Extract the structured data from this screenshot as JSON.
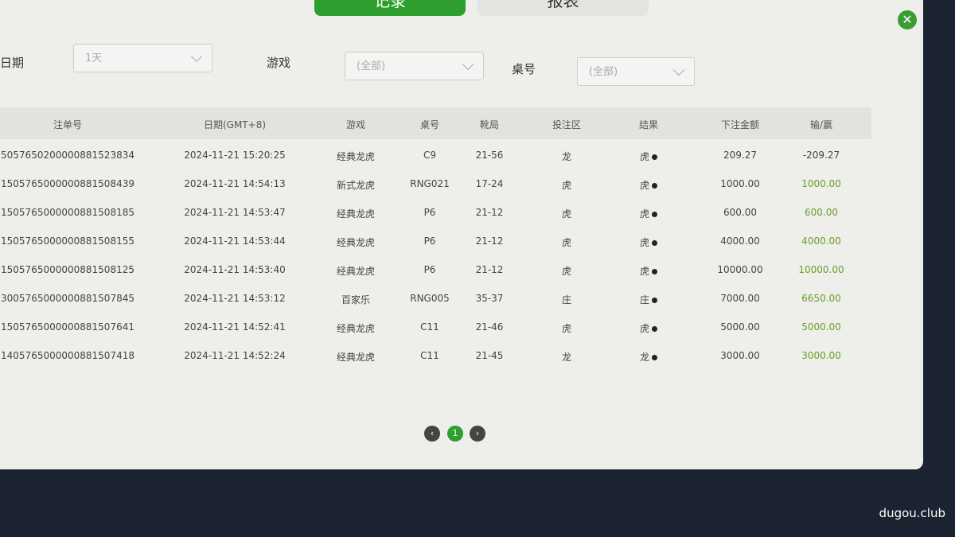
{
  "tabs": [
    "记录",
    "报表"
  ],
  "filters": [
    {
      "label": "日期",
      "value": "1天"
    },
    {
      "label": "游戏",
      "value": "(全部)"
    },
    {
      "label": "桌号",
      "value": "(全部)"
    }
  ],
  "table": {
    "headers": [
      "注单号",
      "日期(GMT+8)",
      "游戏",
      "桌号",
      "靴局",
      "投注区",
      "结果",
      "下注金额",
      "输/赢"
    ],
    "rows": [
      [
        "5057650200000881523834",
        "2024-11-21 15:20:25",
        "经典龙虎",
        "C9",
        "21-56",
        "龙",
        "虎",
        "209.27",
        "-209.27"
      ],
      [
        "1505765000000881508439",
        "2024-11-21 14:54:13",
        "新式龙虎",
        "RNG021",
        "17-24",
        "虎",
        "虎",
        "1000.00",
        "1000.00"
      ],
      [
        "1505765000000881508185",
        "2024-11-21 14:53:47",
        "经典龙虎",
        "P6",
        "21-12",
        "虎",
        "虎",
        "600.00",
        "600.00"
      ],
      [
        "1505765000000881508155",
        "2024-11-21 14:53:44",
        "经典龙虎",
        "P6",
        "21-12",
        "虎",
        "虎",
        "4000.00",
        "4000.00"
      ],
      [
        "1505765000000881508125",
        "2024-11-21 14:53:40",
        "经典龙虎",
        "P6",
        "21-12",
        "虎",
        "虎",
        "10000.00",
        "10000.00"
      ],
      [
        "3005765000000881507845",
        "2024-11-21 14:53:12",
        "百家乐",
        "RNG005",
        "35-37",
        "庄",
        "庄",
        "7000.00",
        "6650.00"
      ],
      [
        "1505765000000881507641",
        "2024-11-21 14:52:41",
        "经典龙虎",
        "C11",
        "21-46",
        "虎",
        "虎",
        "5000.00",
        "5000.00"
      ],
      [
        "1405765000000881507418",
        "2024-11-21 14:52:24",
        "经典龙虎",
        "C11",
        "21-45",
        "龙",
        "龙",
        "3000.00",
        "3000.00"
      ]
    ]
  },
  "pagination": {
    "current": "1"
  },
  "watermark": "dugou.club"
}
